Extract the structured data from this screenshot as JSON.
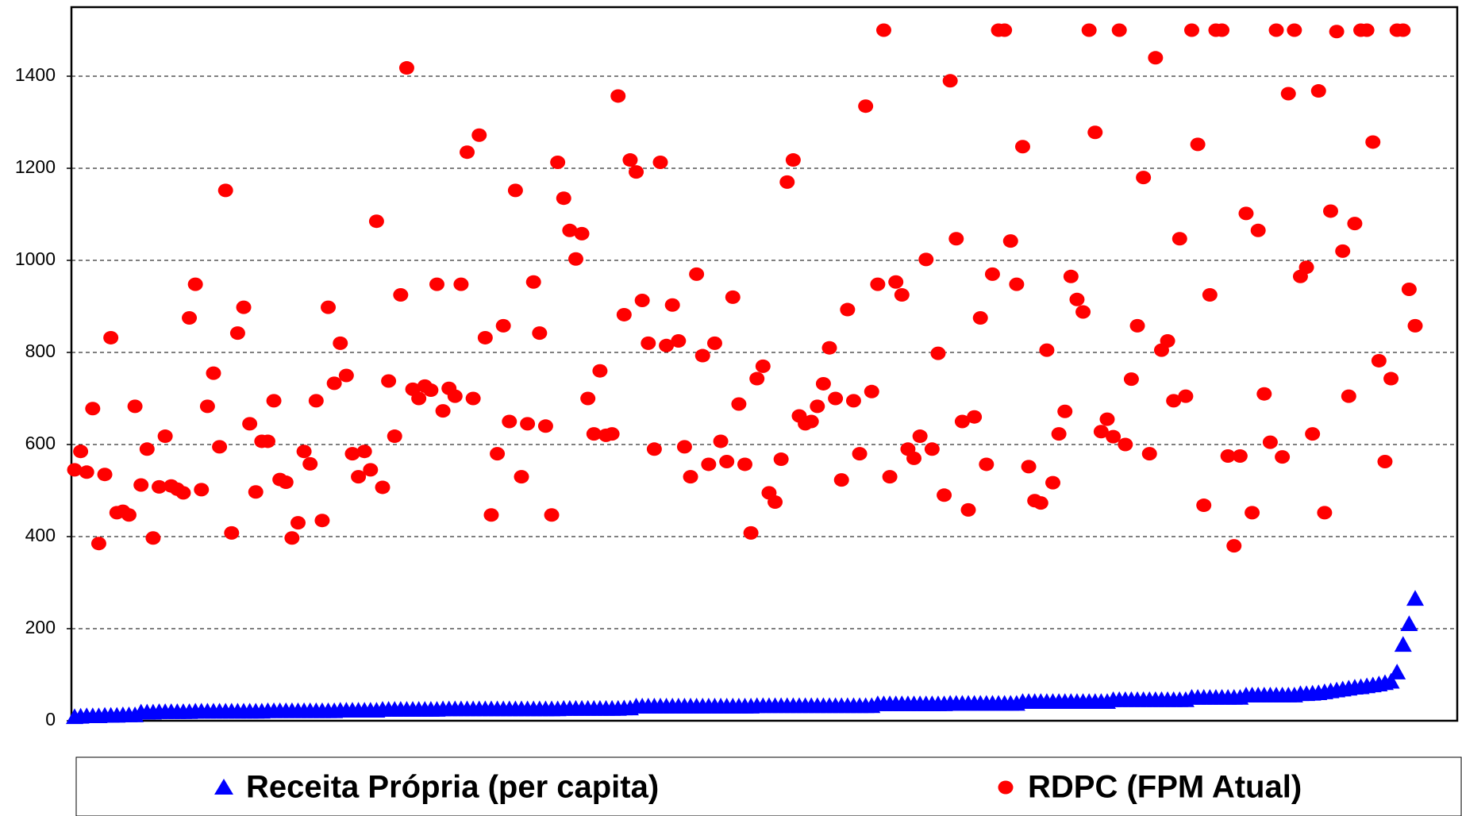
{
  "chart_data": {
    "type": "scatter",
    "ylim": [
      0,
      1550
    ],
    "yticks": [
      0,
      200,
      400,
      600,
      800,
      1000,
      1200,
      1400
    ],
    "grid": true,
    "legend": "bottom",
    "series": [
      {
        "name": "Receita Própria (per capita)",
        "color": "#0000ff",
        "marker": "triangle",
        "values": [
          8,
          9,
          10,
          10,
          10,
          11,
          11,
          11,
          12,
          12,
          12,
          18,
          18,
          18,
          19,
          19,
          19,
          19,
          19,
          19,
          20,
          20,
          20,
          20,
          20,
          20,
          20,
          20,
          20,
          20,
          20,
          20,
          21,
          21,
          21,
          21,
          21,
          21,
          21,
          21,
          21,
          21,
          21,
          21,
          22,
          22,
          22,
          22,
          22,
          22,
          22,
          24,
          24,
          24,
          24,
          24,
          24,
          24,
          24,
          24,
          24,
          25,
          25,
          25,
          25,
          25,
          25,
          25,
          25,
          25,
          25,
          25,
          25,
          25,
          25,
          25,
          25,
          25,
          25,
          25,
          25,
          26,
          26,
          26,
          26,
          26,
          26,
          26,
          26,
          26,
          26,
          27,
          27,
          31,
          31,
          31,
          31,
          31,
          31,
          31,
          31,
          31,
          31,
          31,
          31,
          31,
          31,
          31,
          31,
          31,
          31,
          31,
          31,
          32,
          32,
          32,
          32,
          32,
          32,
          32,
          32,
          32,
          32,
          32,
          32,
          32,
          32,
          32,
          32,
          32,
          32,
          32,
          32,
          36,
          36,
          36,
          36,
          36,
          36,
          36,
          36,
          36,
          36,
          36,
          36,
          37,
          37,
          37,
          37,
          37,
          37,
          37,
          37,
          37,
          37,
          37,
          37,
          41,
          41,
          41,
          41,
          41,
          41,
          41,
          41,
          41,
          41,
          41,
          41,
          41,
          41,
          41,
          45,
          45,
          45,
          45,
          45,
          45,
          45,
          45,
          45,
          45,
          45,
          45,
          45,
          50,
          50,
          50,
          50,
          50,
          50,
          50,
          50,
          50,
          55,
          55,
          55,
          55,
          55,
          55,
          55,
          55,
          55,
          58,
          58,
          59,
          60,
          62,
          64,
          66,
          68,
          70,
          72,
          73,
          75,
          77,
          79,
          82,
          85,
          105,
          165,
          210,
          265
        ]
      },
      {
        "name": "RDPC (FPM Atual)",
        "color": "#ff0000",
        "marker": "circle",
        "values": [
          545,
          585,
          540,
          678,
          385,
          535,
          832,
          452,
          455,
          447,
          683,
          512,
          590,
          397,
          508,
          618,
          510,
          503,
          495,
          875,
          948,
          502,
          683,
          755,
          595,
          1152,
          408,
          842,
          898,
          645,
          497,
          607,
          607,
          695,
          524,
          518,
          397,
          430,
          585,
          558,
          695,
          435,
          898,
          733,
          820,
          750,
          580,
          530,
          585,
          545,
          1085,
          507,
          738,
          618,
          925,
          1418,
          720,
          700,
          727,
          718,
          948,
          673,
          722,
          705,
          948,
          1235,
          700,
          1272,
          832,
          447,
          580,
          858,
          650,
          1152,
          530,
          645,
          953,
          842,
          640,
          447,
          1213,
          1135,
          1065,
          1003,
          1058,
          700,
          623,
          760,
          620,
          623,
          1357,
          882,
          1218,
          1192,
          913,
          820,
          590,
          1213,
          815,
          903,
          825,
          595,
          530,
          970,
          793,
          557,
          820,
          607,
          563,
          920,
          688,
          557,
          408,
          743,
          770,
          495,
          475,
          568,
          1170,
          1218,
          662,
          645,
          650,
          683,
          732,
          810,
          700,
          523,
          893,
          695,
          580,
          1335,
          715,
          948,
          1500,
          530,
          953,
          925,
          590,
          570,
          618,
          1002,
          590,
          798,
          490,
          1390,
          1047,
          650,
          458,
          660,
          875,
          557,
          970,
          1500,
          1500,
          1042,
          948,
          1247,
          552,
          478,
          473,
          805,
          517,
          623,
          672,
          965,
          915,
          888,
          1500,
          1278,
          628,
          655,
          617,
          1500,
          600,
          742,
          858,
          1180,
          580,
          1440,
          805,
          825,
          695,
          1047,
          705,
          1500,
          1252,
          468,
          925,
          1500,
          1500,
          575,
          380,
          575,
          1102,
          452,
          1065,
          710,
          605,
          1500,
          573,
          1362,
          1500,
          965,
          985,
          623,
          1368,
          452,
          1107,
          1497,
          1020,
          705,
          1080,
          1500,
          1500,
          1257,
          782,
          563,
          743,
          1500,
          1500,
          937,
          858
        ]
      }
    ]
  }
}
